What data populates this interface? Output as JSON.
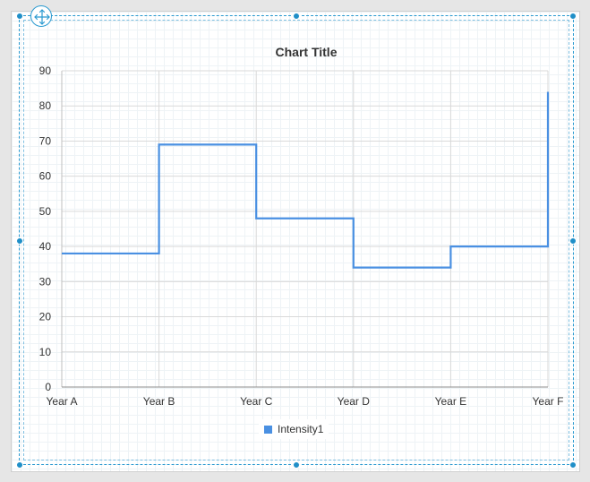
{
  "colors": {
    "series": "#4a90e2",
    "selection": "#2a9ad0"
  },
  "icons": {
    "move": "move-arrows-icon"
  },
  "chart_data": {
    "type": "line",
    "style": "step",
    "title": "Chart Title",
    "xlabel": "",
    "ylabel": "",
    "categories": [
      "Year A",
      "Year B",
      "Year C",
      "Year D",
      "Year E",
      "Year F"
    ],
    "series": [
      {
        "name": "Intensity1",
        "values": [
          38,
          69,
          48,
          34,
          40,
          84
        ]
      }
    ],
    "ylim": [
      0,
      90
    ],
    "yticks": [
      "0",
      "10",
      "20",
      "30",
      "40",
      "50",
      "60",
      "70",
      "80",
      "90"
    ],
    "grid": true,
    "legend": "bottom"
  }
}
